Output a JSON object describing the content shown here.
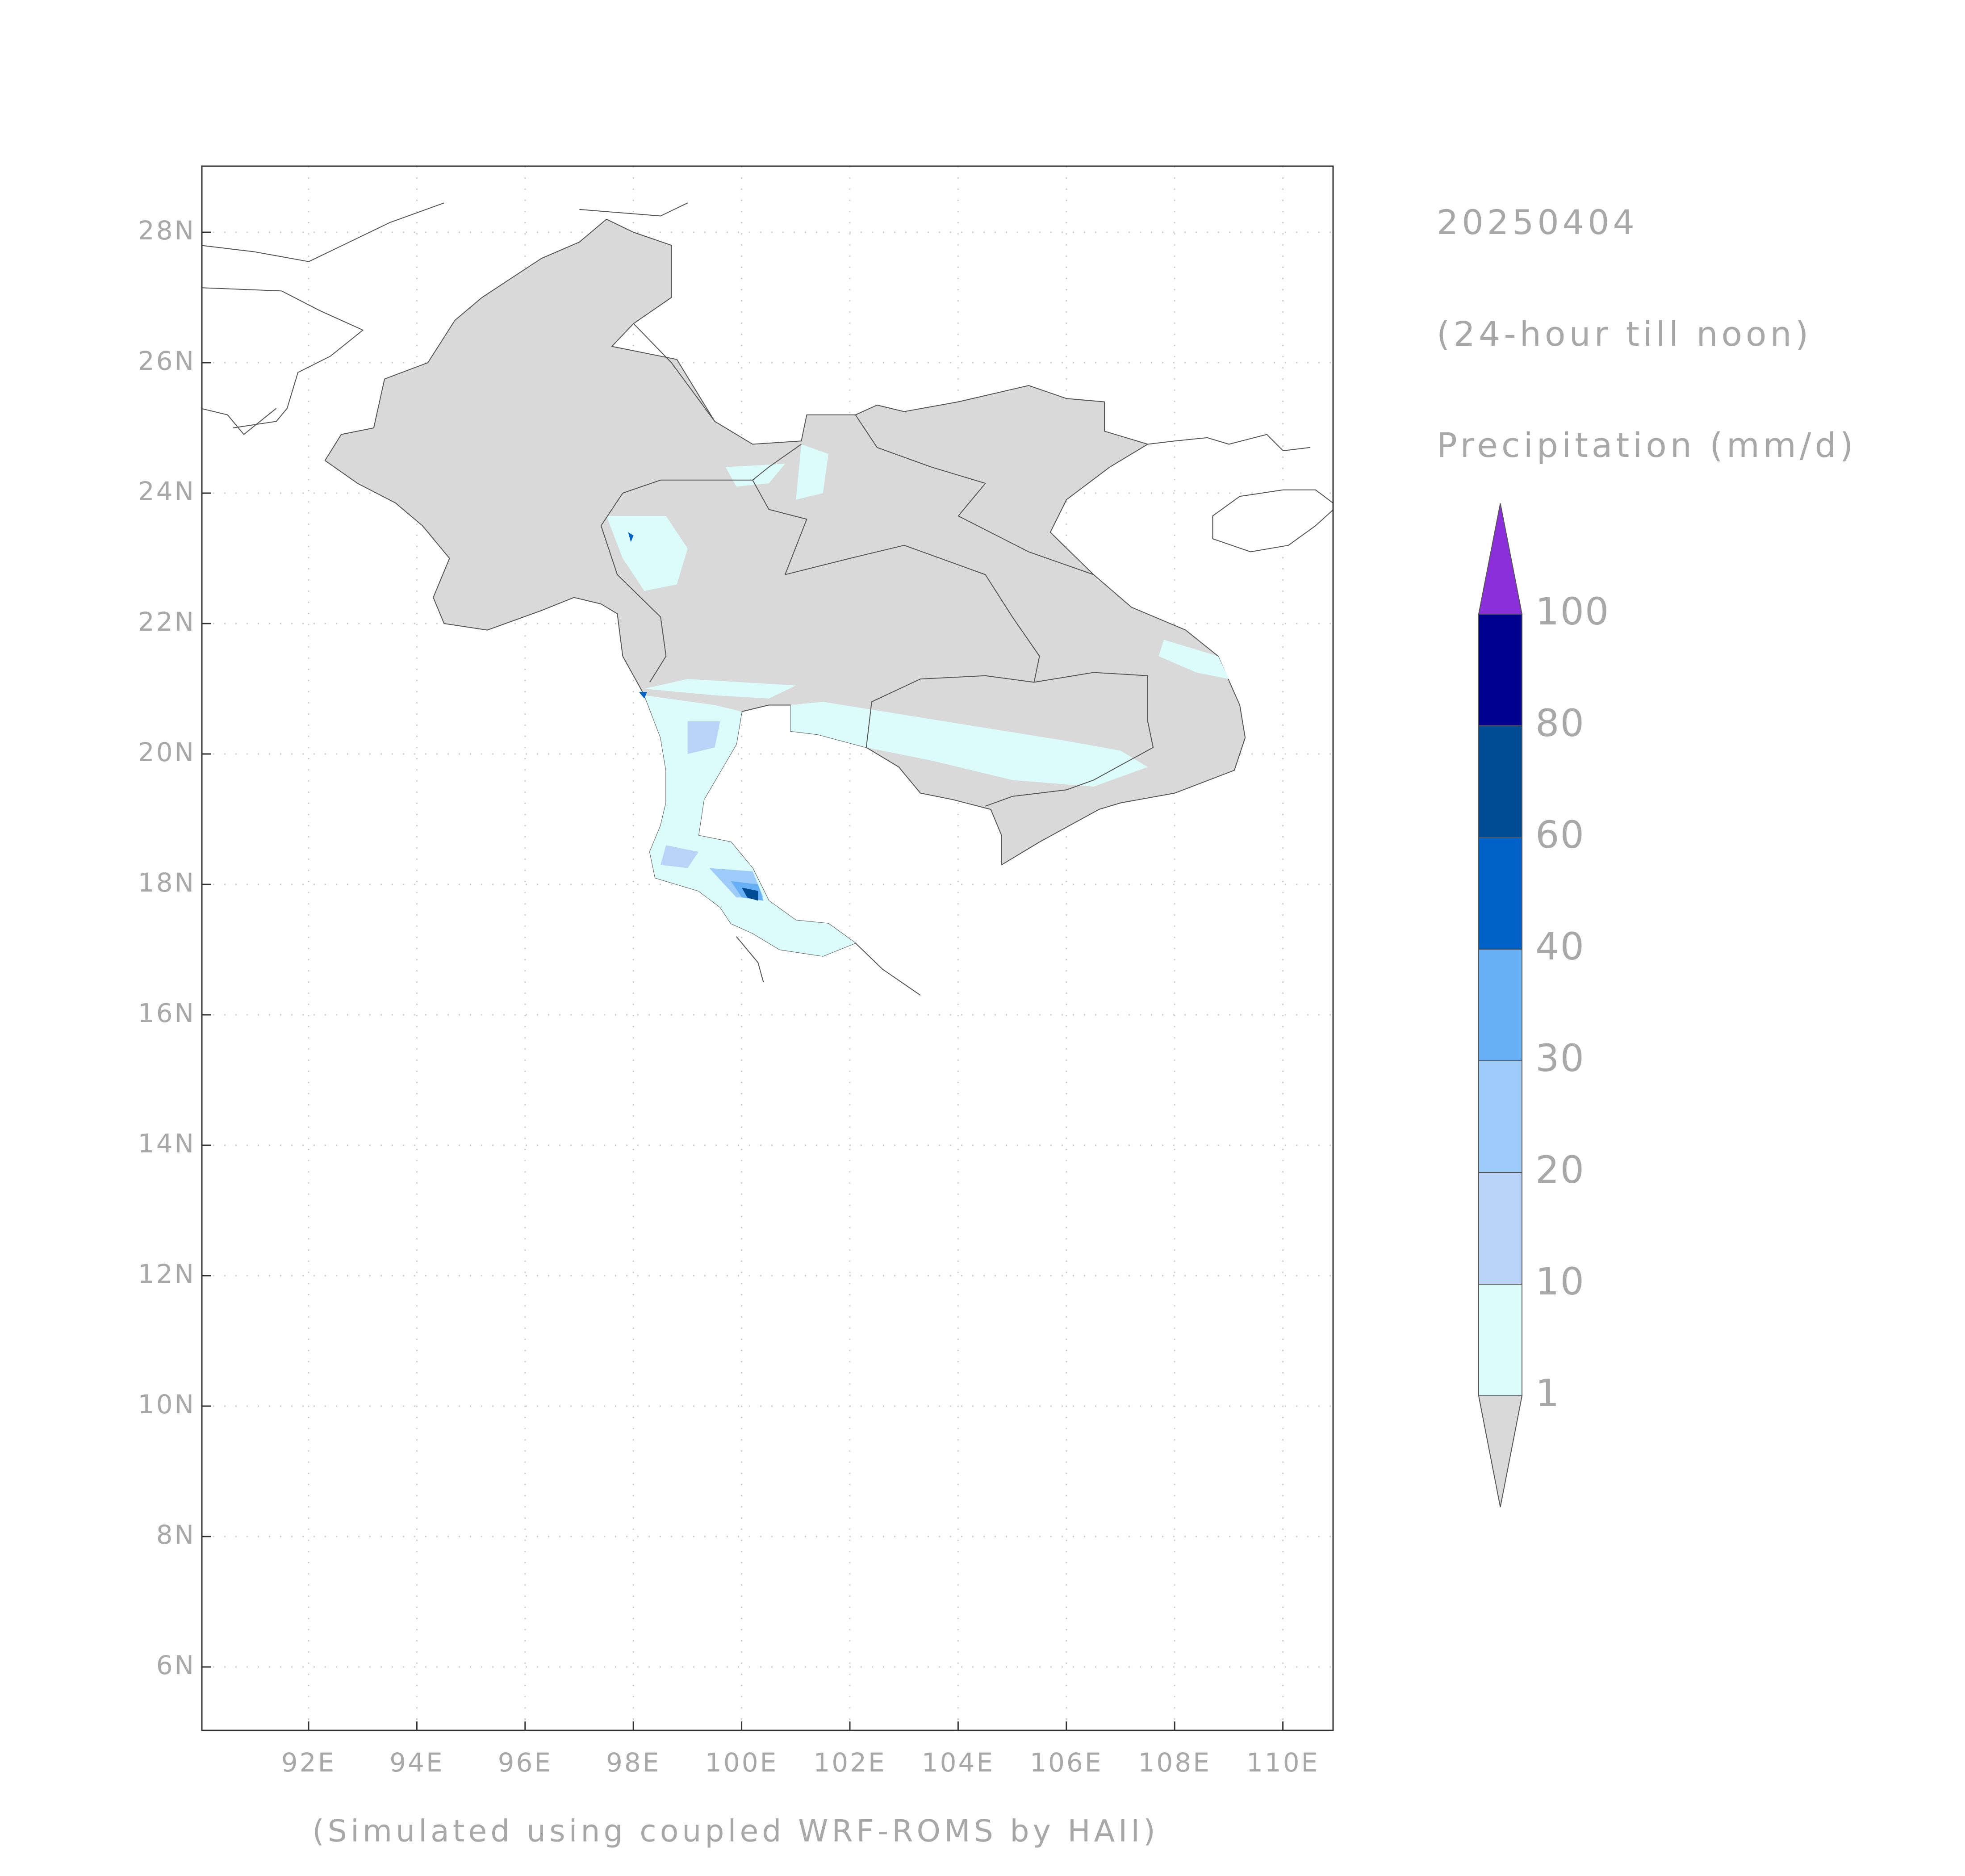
{
  "axes": {
    "lat_ticks": [
      "28N",
      "26N",
      "24N",
      "22N",
      "20N",
      "18N",
      "16N",
      "14N",
      "12N",
      "10N",
      "8N",
      "6N"
    ],
    "lon_ticks": [
      "92E",
      "94E",
      "96E",
      "98E",
      "100E",
      "102E",
      "104E",
      "106E",
      "108E",
      "110E"
    ]
  },
  "legend": {
    "date": "20250404",
    "period": "(24-hour till noon)",
    "variable": "Precipitation (mm/d)",
    "levels": [
      1,
      10,
      20,
      30,
      40,
      60,
      80,
      100
    ],
    "under_color": "#d9d9d9",
    "colors": [
      "#dcfcfc",
      "#b8d2f8",
      "#9dcbfa",
      "#68b0f5",
      "#0062c8",
      "#004c94",
      "#00008f"
    ],
    "over_color": "#8b2fdb"
  },
  "footer": "(Simulated using coupled WRF-ROMS by HAII)"
}
